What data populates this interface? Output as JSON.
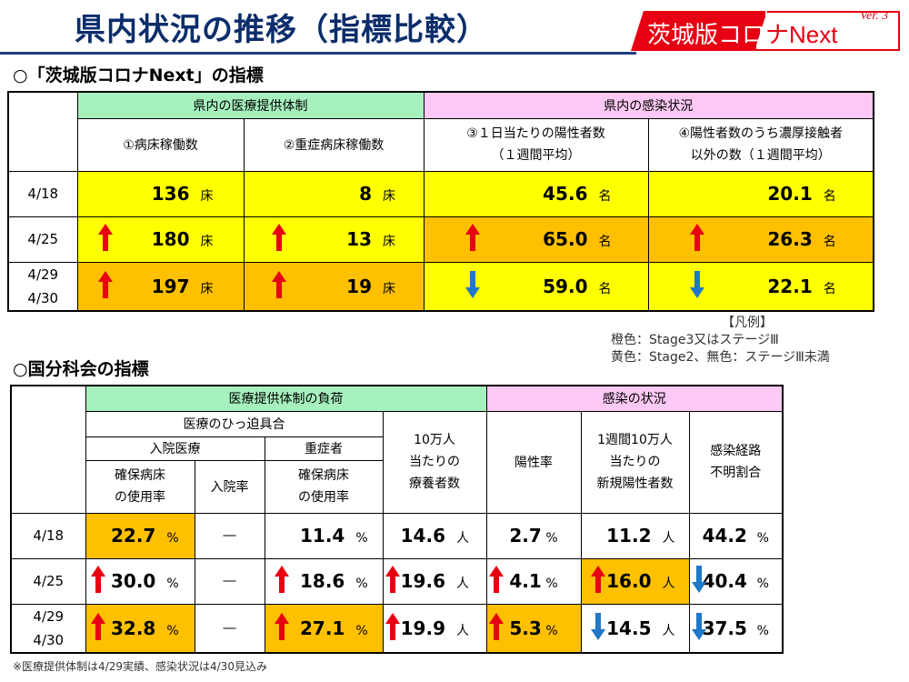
{
  "header": {
    "title": "県内状況の推移（指標比較）",
    "brand_main": "茨城版コロ",
    "brand_second": "ナNext",
    "brand_ver": "Ver. 3"
  },
  "section1": "○「茨城版コロナNext」の指標",
  "section2": "○国分科会の指標",
  "colors": {
    "yellow": "#ffff00",
    "orange": "#ffc000",
    "green": "#a6f0bd",
    "pink": "#fcc8f4",
    "up_arrow": "#e60012",
    "down_arrow": "#1f78c8"
  },
  "table1": {
    "group_medical": "県内の医療提供体制",
    "group_infection": "県内の感染状況",
    "col1": "①病床稼働数",
    "col2": "②重症病床稼働数",
    "col3_l1": "③１日当たりの陽性者数",
    "col3_l2": "（１週間平均）",
    "col4_l1": "④陽性者数のうち濃厚接触者",
    "col4_l2": "以外の数（１週間平均）",
    "rows": [
      {
        "date1": "4/18",
        "date2": "",
        "c1": {
          "v": "136",
          "u": "床"
        },
        "c2": {
          "v": "8",
          "u": "床"
        },
        "c3": {
          "v": "45.6",
          "u": "名"
        },
        "c4": {
          "v": "20.1",
          "u": "名"
        }
      },
      {
        "date1": "4/25",
        "date2": "",
        "c1": {
          "v": "180",
          "u": "床"
        },
        "c2": {
          "v": "13",
          "u": "床"
        },
        "c3": {
          "v": "65.0",
          "u": "名"
        },
        "c4": {
          "v": "26.3",
          "u": "名"
        }
      },
      {
        "date1": "4/29",
        "date2": "4/30",
        "c1": {
          "v": "197",
          "u": "床"
        },
        "c2": {
          "v": "19",
          "u": "床"
        },
        "c3": {
          "v": "59.0",
          "u": "名"
        },
        "c4": {
          "v": "22.1",
          "u": "名"
        }
      }
    ]
  },
  "legend": {
    "heading": "【凡例】",
    "line1": "橙色：Stage3又はステージⅢ",
    "line2": "黄色：Stage2、無色：ステージⅢ未満"
  },
  "table2": {
    "group_load": "医療提供体制の負荷",
    "group_infection": "感染の状況",
    "squeeze": "医療のひっ迫具合",
    "hosp": "入院医療",
    "severe": "重症者",
    "h_bed_l1": "確保病床",
    "h_bed_l2": "の使用率",
    "h_rate": "入院率",
    "s_bed_l1": "確保病床",
    "s_bed_l2": "の使用率",
    "care_l1": "10万人",
    "care_l2": "当たりの",
    "care_l3": "療養者数",
    "pos": "陽性率",
    "new_l1": "1週間10万人",
    "new_l2": "当たりの",
    "new_l3": "新規陽性者数",
    "unk_l1": "感染経路",
    "unk_l2": "不明割合",
    "rows": [
      {
        "date1": "4/18",
        "date2": "",
        "a": {
          "v": "22.7",
          "u": "%"
        },
        "b": "―",
        "c": {
          "v": "11.4",
          "u": "%"
        },
        "d": {
          "v": "14.6",
          "u": "人"
        },
        "e": {
          "v": "2.7",
          "u": "%"
        },
        "f": {
          "v": "11.2",
          "u": "人"
        },
        "g": {
          "v": "44.2",
          "u": "%"
        }
      },
      {
        "date1": "4/25",
        "date2": "",
        "a": {
          "v": "30.0",
          "u": "%"
        },
        "b": "―",
        "c": {
          "v": "18.6",
          "u": "%"
        },
        "d": {
          "v": "19.6",
          "u": "人"
        },
        "e": {
          "v": "4.1",
          "u": "%"
        },
        "f": {
          "v": "16.0",
          "u": "人"
        },
        "g": {
          "v": "40.4",
          "u": "%"
        }
      },
      {
        "date1": "4/29",
        "date2": "4/30",
        "a": {
          "v": "32.8",
          "u": "%"
        },
        "b": "―",
        "c": {
          "v": "27.1",
          "u": "%"
        },
        "d": {
          "v": "19.9",
          "u": "人"
        },
        "e": {
          "v": "5.3",
          "u": "%"
        },
        "f": {
          "v": "14.5",
          "u": "人"
        },
        "g": {
          "v": "37.5",
          "u": "%"
        }
      }
    ]
  },
  "note": "※医療提供体制は4/29実績、感染状況は4/30見込み"
}
